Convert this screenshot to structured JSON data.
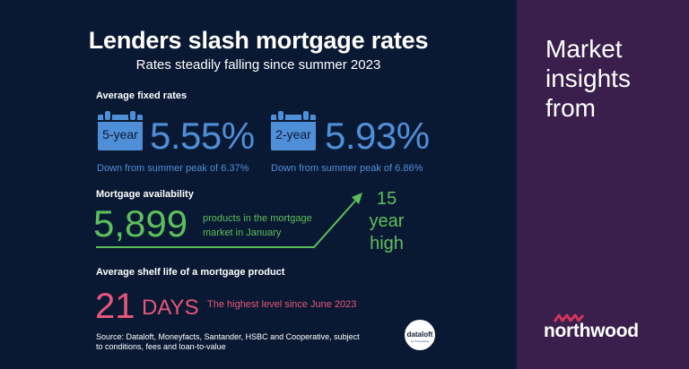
{
  "header": {
    "title": "Lenders slash mortgage rates",
    "subtitle": "Rates steadily falling since summer 2023"
  },
  "fixed_rates": {
    "label": "Average fixed rates",
    "items": [
      {
        "term": "5-year",
        "value": "5.55%",
        "note": "Down from summer peak of 6.37%"
      },
      {
        "term": "2-year",
        "value": "5.93%",
        "note": "Down from summer peak of 6.86%"
      }
    ]
  },
  "availability": {
    "label": "Mortgage availability",
    "number": "5,899",
    "text": "products in the mortgage market in January",
    "high_line1": "15",
    "high_line2": "year",
    "high_line3": "high"
  },
  "shelf_life": {
    "label": "Average shelf life of a mortgage product",
    "number": "21",
    "unit": "DAYS",
    "note": "The highest level since June 2023"
  },
  "source": "Source: Dataloft, Moneyfacts, Santander, HSBC and Cooperative, subject to conditions, fees and loan-to-value",
  "dataloft_logo": {
    "name": "dataloft",
    "sub": "by PriceHubble"
  },
  "sidebar": {
    "line1": "Market",
    "line2": "insights",
    "line3": "from",
    "brand": "northwood"
  },
  "colors": {
    "background": "#0a1933",
    "sidebar": "#3a1f4d",
    "rates": "#4f8fd8",
    "availability": "#5cbf5c",
    "shelf_life": "#e8567a"
  },
  "icons": [
    "calendar-icon",
    "arrow-up-right-icon",
    "dataloft-logo",
    "northwood-logo"
  ]
}
